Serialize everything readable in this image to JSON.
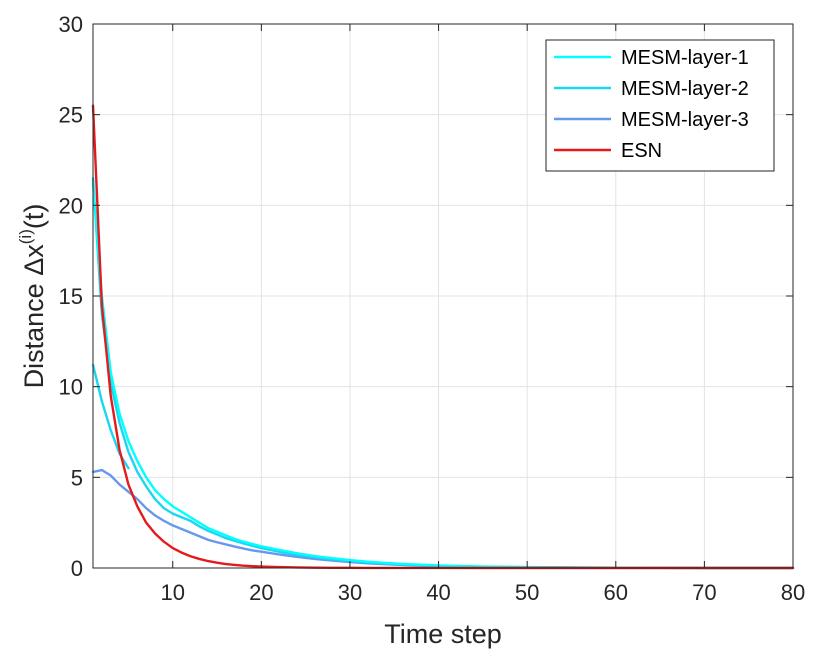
{
  "chart_data": {
    "type": "line",
    "title": "",
    "xlabel": "Time step",
    "ylabel": {
      "main": "Distance ",
      "delta": "Δx",
      "superscript": "(i)",
      "suffix": "(t)"
    },
    "xlim": [
      1,
      80
    ],
    "ylim": [
      0,
      30
    ],
    "xticks": [
      10,
      20,
      30,
      40,
      50,
      60,
      70,
      80
    ],
    "yticks": [
      0,
      5,
      10,
      15,
      20,
      25,
      30
    ],
    "grid": true,
    "legend_position": "top-right",
    "x": [
      1,
      2,
      3,
      4,
      5,
      6,
      7,
      8,
      9,
      10,
      11,
      12,
      13,
      14,
      15,
      16,
      17,
      18,
      19,
      20,
      22,
      24,
      26,
      28,
      30,
      32,
      34,
      36,
      38,
      40,
      45,
      50,
      55,
      60,
      65,
      70,
      75,
      80
    ],
    "series": [
      {
        "name": "MESM-layer-1",
        "color": "#00ffff",
        "values": [
          21.2,
          15.0,
          10.8,
          8.5,
          7.0,
          5.9,
          5.0,
          4.3,
          3.8,
          3.4,
          3.1,
          2.8,
          2.5,
          2.2,
          2.0,
          1.8,
          1.6,
          1.45,
          1.32,
          1.2,
          1.0,
          0.82,
          0.66,
          0.54,
          0.44,
          0.35,
          0.28,
          0.22,
          0.18,
          0.14,
          0.08,
          0.05,
          0.03,
          0.02,
          0.012,
          0.008,
          0.005,
          0.003
        ]
      },
      {
        "name": "MESM-layer-2",
        "color": "#1ad6ee",
        "values": [
          21.5,
          14.0,
          10.2,
          8.0,
          6.4,
          5.3,
          4.5,
          3.8,
          3.3,
          3.0,
          2.8,
          2.6,
          2.3,
          2.05,
          1.85,
          1.65,
          1.5,
          1.35,
          1.22,
          1.1,
          0.9,
          0.73,
          0.6,
          0.48,
          0.39,
          0.31,
          0.25,
          0.2,
          0.16,
          0.13,
          0.07,
          0.045,
          0.028,
          0.018,
          0.011,
          0.007,
          0.004,
          0.003
        ]
      },
      {
        "name": "MESM-layer-3",
        "color": "#6699ee",
        "values": [
          5.3,
          5.4,
          5.1,
          4.6,
          4.2,
          3.8,
          3.3,
          2.9,
          2.6,
          2.35,
          2.15,
          1.95,
          1.75,
          1.55,
          1.42,
          1.3,
          1.18,
          1.07,
          0.97,
          0.9,
          0.75,
          0.62,
          0.5,
          0.41,
          0.33,
          0.26,
          0.21,
          0.17,
          0.13,
          0.11,
          0.06,
          0.035,
          0.02,
          0.013,
          0.008,
          0.005,
          0.003,
          0.002
        ]
      },
      {
        "name": "ESN",
        "color": "#e41a1c",
        "values": [
          25.5,
          14.5,
          9.5,
          6.5,
          4.6,
          3.4,
          2.5,
          1.9,
          1.45,
          1.1,
          0.85,
          0.65,
          0.5,
          0.38,
          0.29,
          0.22,
          0.17,
          0.13,
          0.1,
          0.08,
          0.05,
          0.03,
          0.02,
          0.012,
          0.008,
          0.005,
          0.003,
          0.002,
          0.001,
          0.001,
          0,
          0,
          0,
          0,
          0,
          0,
          0,
          0
        ]
      }
    ],
    "extra_segments": [
      {
        "name": "MESM-layer-2-start",
        "color": "#1ad6ee",
        "x": [
          1,
          2,
          3,
          4,
          5
        ],
        "values": [
          11.2,
          9.2,
          7.6,
          6.3,
          5.5
        ]
      }
    ]
  }
}
